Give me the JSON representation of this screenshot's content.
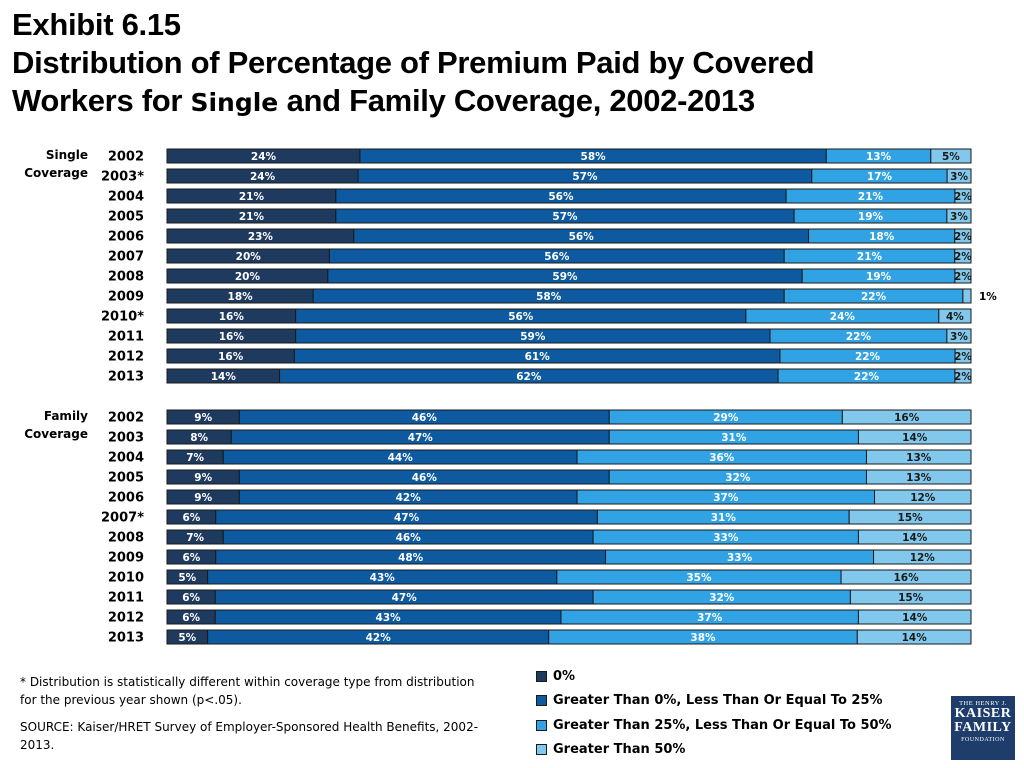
{
  "title": {
    "line1_word": "Exhibit",
    "line1_num": "6.15",
    "line2": "Distribution of Percentage of Premium Paid by Covered",
    "line3_pre": "Workers for",
    "line3_single": "Single",
    "line3_post": "and Family Coverage, 2002-2013"
  },
  "chart_data": {
    "type": "bar",
    "orientation": "horizontal",
    "stacked": true,
    "percent_scale": 100,
    "series": [
      {
        "name": "0%",
        "color": "#1f3a5f"
      },
      {
        "name": "Greater Than 0%, Less Than Or Equal To 25%",
        "color": "#0d5aa0"
      },
      {
        "name": "Greater Than 25%, Less Than Or Equal To 50%",
        "color": "#31a2e3"
      },
      {
        "name": "Greater Than 50%",
        "color": "#82c8ec"
      }
    ],
    "groups": [
      {
        "label": "Single\nCoverage",
        "rows": [
          {
            "year": "2002",
            "values": [
              24,
              58,
              13,
              5
            ]
          },
          {
            "year": "2003*",
            "values": [
              24,
              57,
              17,
              3
            ]
          },
          {
            "year": "2004",
            "values": [
              21,
              56,
              21,
              2
            ]
          },
          {
            "year": "2005",
            "values": [
              21,
              57,
              19,
              3
            ]
          },
          {
            "year": "2006",
            "values": [
              23,
              56,
              18,
              2
            ]
          },
          {
            "year": "2007",
            "values": [
              20,
              56,
              21,
              2
            ]
          },
          {
            "year": "2008",
            "values": [
              20,
              59,
              19,
              2
            ]
          },
          {
            "year": "2009",
            "values": [
              18,
              58,
              22,
              1
            ]
          },
          {
            "year": "2010*",
            "values": [
              16,
              56,
              24,
              4
            ]
          },
          {
            "year": "2011",
            "values": [
              16,
              59,
              22,
              3
            ]
          },
          {
            "year": "2012",
            "values": [
              16,
              61,
              22,
              2
            ]
          },
          {
            "year": "2013",
            "values": [
              14,
              62,
              22,
              2
            ]
          }
        ]
      },
      {
        "label": "Family\nCoverage",
        "rows": [
          {
            "year": "2002",
            "values": [
              9,
              46,
              29,
              16
            ]
          },
          {
            "year": "2003",
            "values": [
              8,
              47,
              31,
              14
            ]
          },
          {
            "year": "2004",
            "values": [
              7,
              44,
              36,
              13
            ]
          },
          {
            "year": "2005",
            "values": [
              9,
              46,
              32,
              13
            ]
          },
          {
            "year": "2006",
            "values": [
              9,
              42,
              37,
              12
            ]
          },
          {
            "year": "2007*",
            "values": [
              6,
              47,
              31,
              15
            ]
          },
          {
            "year": "2008",
            "values": [
              7,
              46,
              33,
              14
            ]
          },
          {
            "year": "2009",
            "values": [
              6,
              48,
              33,
              12
            ]
          },
          {
            "year": "2010",
            "values": [
              5,
              43,
              35,
              16
            ]
          },
          {
            "year": "2011",
            "values": [
              6,
              47,
              32,
              15
            ]
          },
          {
            "year": "2012",
            "values": [
              6,
              43,
              37,
              14
            ]
          },
          {
            "year": "2013",
            "values": [
              5,
              42,
              38,
              14
            ]
          }
        ]
      }
    ]
  },
  "notes": {
    "footnote": "* Distribution is statistically different within coverage type from distribution for the previous year shown (p<.05).",
    "source": "SOURCE:  Kaiser/HRET Survey of Employer-Sponsored Health Benefits, 2002-2013."
  },
  "logo": {
    "line1": "THE HENRY J.",
    "line2": "KAISER",
    "line3": "FAMILY",
    "line4": "FOUNDATION"
  }
}
